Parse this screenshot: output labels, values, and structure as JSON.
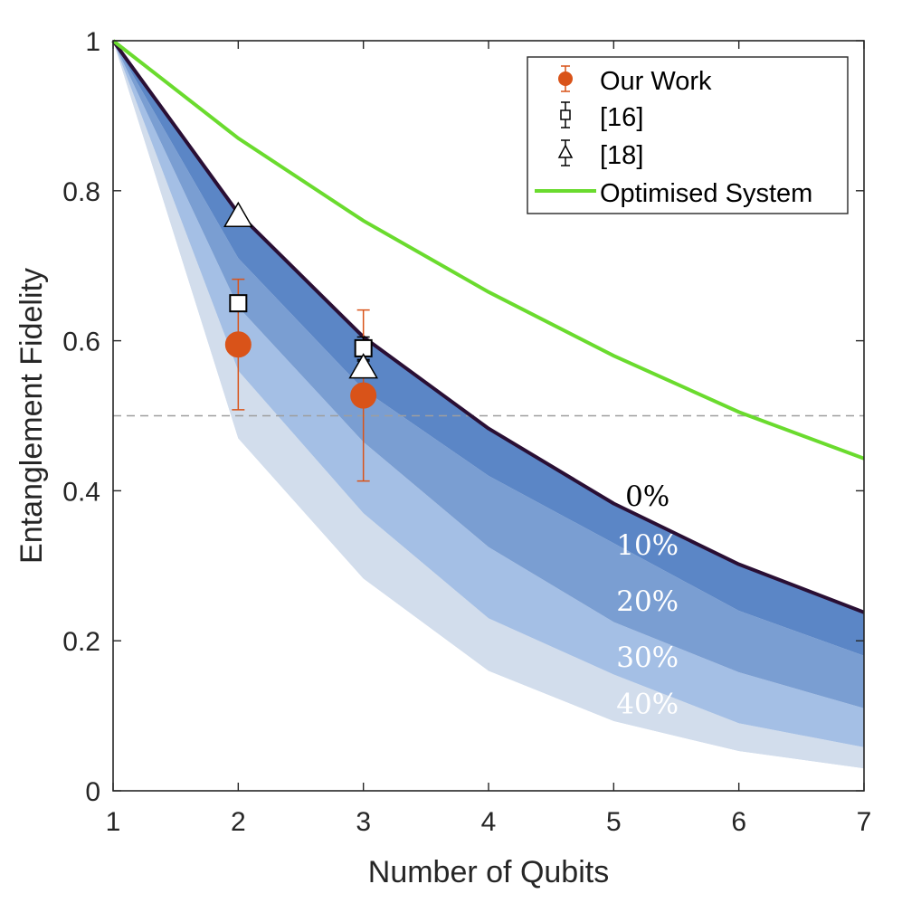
{
  "chart_data": {
    "type": "line",
    "title": "",
    "xlabel": "Number of Qubits",
    "ylabel": "Entanglement Fidelity",
    "xlim": [
      1,
      7
    ],
    "ylim": [
      0,
      1
    ],
    "xticks": [
      1,
      2,
      3,
      4,
      5,
      6,
      7
    ],
    "yticks": [
      0,
      0.2,
      0.4,
      0.6,
      0.8,
      1
    ],
    "ytick_labels": [
      "0",
      "0.2",
      "0.4",
      "0.6",
      "0.8",
      "1"
    ],
    "x": [
      1,
      2,
      3,
      4,
      5,
      6,
      7
    ],
    "threshold": {
      "y": 0.5,
      "style": "dashed",
      "color": "#9e9e9e"
    },
    "bands": [
      {
        "label": "0%",
        "values": [
          1,
          0.77,
          0.605,
          0.483,
          0.383,
          0.302,
          0.238
        ],
        "fill": "#5b86c6",
        "text_color": "#000000",
        "label_at": {
          "x": 5.27,
          "y": 0.38
        }
      },
      {
        "label": "10%",
        "values": [
          1,
          0.71,
          0.535,
          0.42,
          0.33,
          0.24,
          0.18
        ],
        "fill": "#7a9ed2",
        "text_color": "#ffffff",
        "label_at": {
          "x": 5.27,
          "y": 0.315
        }
      },
      {
        "label": "20%",
        "values": [
          1,
          0.645,
          0.465,
          0.325,
          0.225,
          0.158,
          0.11
        ],
        "fill": "#a4bfe5",
        "text_color": "#ffffff",
        "label_at": {
          "x": 5.27,
          "y": 0.24
        }
      },
      {
        "label": "30%",
        "values": [
          1,
          0.56,
          0.37,
          0.23,
          0.155,
          0.09,
          0.058
        ],
        "fill": "#c6d6ec",
        "text_color": "#ffffff",
        "label_at": {
          "x": 5.27,
          "y": 0.165
        }
      },
      {
        "label": "40%",
        "values": [
          1,
          0.47,
          0.283,
          0.16,
          0.093,
          0.053,
          0.03
        ],
        "fill": "#d2ddec",
        "text_color": "#ffffff",
        "label_at": {
          "x": 5.27,
          "y": 0.103
        }
      }
    ],
    "series": [
      {
        "name": "Optimised System",
        "type": "line",
        "color": "#6adb2e",
        "x": [
          1,
          2,
          3,
          4,
          5,
          6,
          7
        ],
        "values": [
          1,
          0.87,
          0.76,
          0.665,
          0.58,
          0.505,
          0.443
        ]
      },
      {
        "name": "Our Work",
        "type": "errorbar",
        "marker": "circle",
        "color": "#d95319",
        "points": [
          {
            "x": 2,
            "y": 0.595,
            "low": 0.508,
            "high": 0.682
          },
          {
            "x": 3,
            "y": 0.527,
            "low": 0.413,
            "high": 0.641
          }
        ]
      },
      {
        "name": "[16]",
        "type": "errorbar",
        "marker": "square",
        "color": "#000000",
        "points": [
          {
            "x": 2,
            "y": 0.65,
            "low": 0.642,
            "high": 0.658
          },
          {
            "x": 3,
            "y": 0.59,
            "low": 0.575,
            "high": 0.605
          }
        ]
      },
      {
        "name": "[18]",
        "type": "errorbar",
        "marker": "triangle",
        "color": "#000000",
        "points": [
          {
            "x": 2,
            "y": 0.765,
            "low": 0.76,
            "high": 0.77
          },
          {
            "x": 3,
            "y": 0.563,
            "low": 0.553,
            "high": 0.573
          }
        ]
      }
    ],
    "legend": {
      "position": "top-right",
      "entries": [
        "Our Work",
        "[16]",
        "[18]",
        "Optimised System"
      ]
    }
  }
}
